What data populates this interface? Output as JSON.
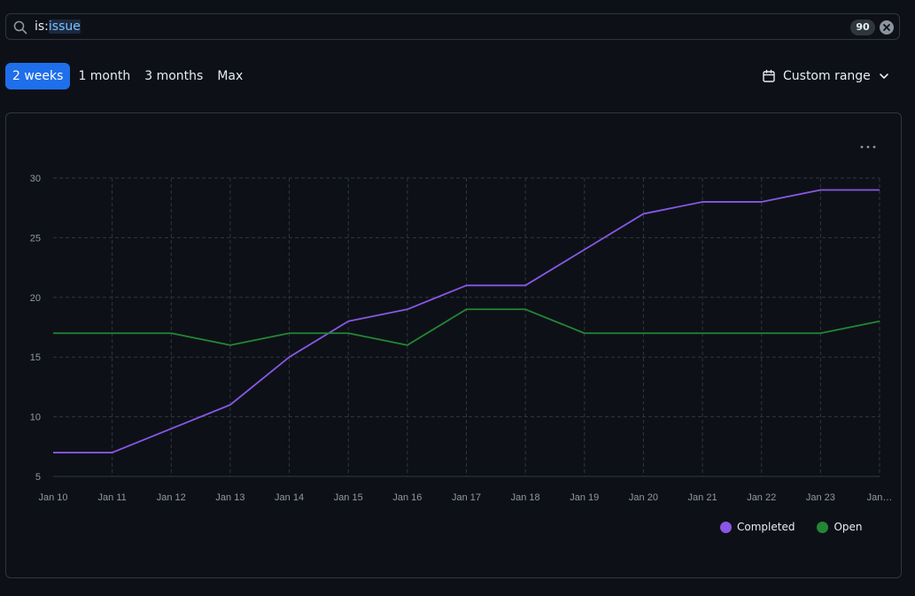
{
  "search": {
    "query_key": "is:",
    "query_value": "issue",
    "count": "90"
  },
  "range": {
    "tabs": [
      "2 weeks",
      "1 month",
      "3 months",
      "Max"
    ],
    "active_index": 0,
    "custom_label": "Custom range"
  },
  "colors": {
    "accent": "#1f6feb",
    "completed": "#8957e5",
    "open": "#238636",
    "grid": "#30363d",
    "axis_text": "#9198a1"
  },
  "chart_data": {
    "type": "line",
    "title": "",
    "xlabel": "",
    "ylabel": "",
    "categories": [
      "Jan 10",
      "Jan 11",
      "Jan 12",
      "Jan 13",
      "Jan 14",
      "Jan 15",
      "Jan 16",
      "Jan 17",
      "Jan 18",
      "Jan 19",
      "Jan 20",
      "Jan 21",
      "Jan 22",
      "Jan 23",
      "Jan…"
    ],
    "yticks": [
      5,
      10,
      15,
      20,
      25,
      30
    ],
    "ylim": [
      5,
      30
    ],
    "grid": true,
    "legend_position": "bottom-right",
    "series": [
      {
        "name": "Completed",
        "color": "#8957e5",
        "values": [
          7,
          7,
          9,
          11,
          15,
          18,
          19,
          21,
          21,
          24,
          27,
          28,
          28,
          29,
          29
        ]
      },
      {
        "name": "Open",
        "color": "#238636",
        "values": [
          17,
          17,
          17,
          16,
          17,
          17,
          16,
          19,
          19,
          17,
          17,
          17,
          17,
          17,
          18
        ]
      }
    ]
  }
}
